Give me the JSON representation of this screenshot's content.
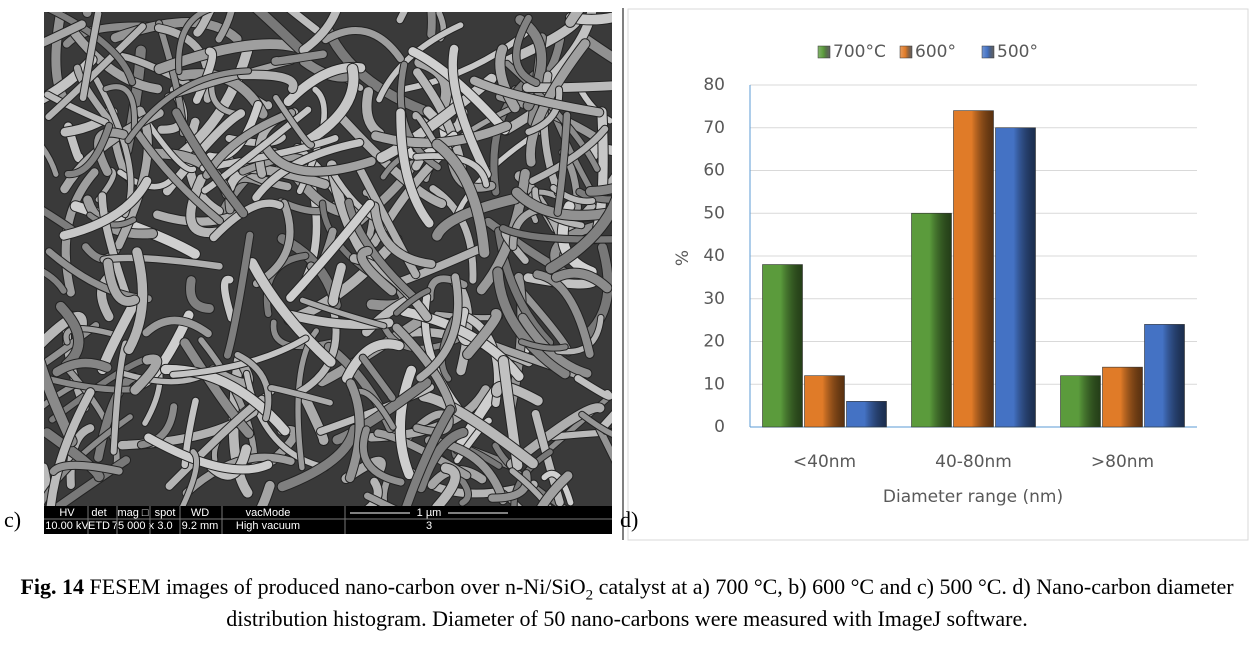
{
  "panel_labels": {
    "left": "c)",
    "right": "d)"
  },
  "sem_info": {
    "headers": [
      "HV",
      "det",
      "mag □",
      "spot",
      "WD",
      "vacMode"
    ],
    "values": [
      "10.00 kV",
      "ETD",
      "75 000 x",
      "3.0",
      "9.2 mm",
      "High vacuum"
    ],
    "scale_label": "1 µm",
    "frame": "3"
  },
  "chart_data": {
    "type": "bar",
    "categories": [
      "<40nm",
      "40-80nm",
      ">80nm"
    ],
    "series": [
      {
        "name": "700°C",
        "color": "#5b9b3c",
        "values": [
          38,
          50,
          12
        ]
      },
      {
        "name": "600°",
        "color": "#e07b28",
        "values": [
          12,
          74,
          14
        ]
      },
      {
        "name": "500°",
        "color": "#4472c4",
        "values": [
          6,
          70,
          24
        ]
      }
    ],
    "ylabel": "%",
    "xlabel": "Diameter range (nm)",
    "ylim": [
      0,
      80
    ],
    "yticks": [
      0,
      10,
      20,
      30,
      40,
      50,
      60,
      70,
      80
    ],
    "grid": true,
    "legend": "top"
  },
  "caption": {
    "label": "Fig. 14",
    "text_before": "FESEM images of produced nano-carbon over n-Ni/SiO",
    "subscript": "2",
    "text_after": "catalyst at a) 700 °C, b) 600 °C and c) 500 °C. d) Nano-carbon diameter distribution histogram. Diameter of 50 nano-carbons were measured with ImageJ software."
  }
}
